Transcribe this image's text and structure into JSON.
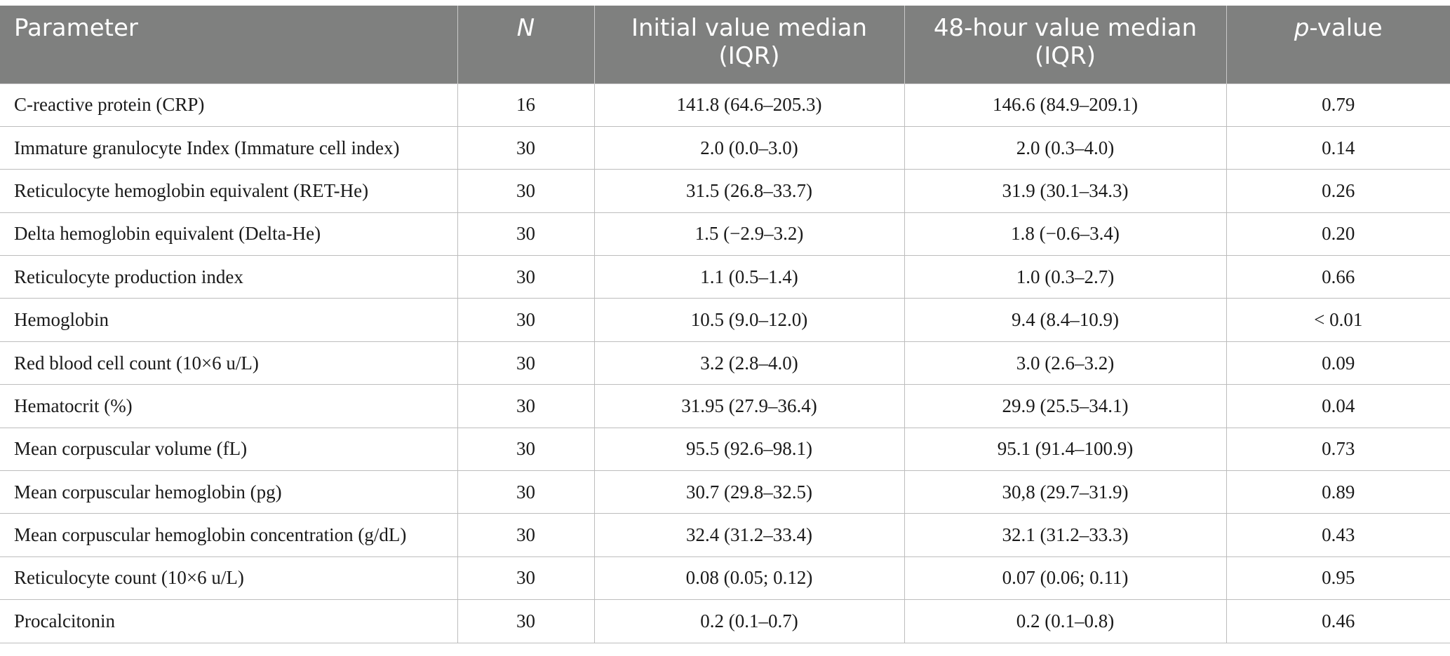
{
  "table": {
    "headers": {
      "parameter": "Parameter",
      "n": "N",
      "initial_line1": "Initial value median",
      "initial_line2": "(IQR)",
      "hour48_line1": "48-hour value median",
      "hour48_line2": "(IQR)",
      "p_italic": "p",
      "p_rest": "-value"
    },
    "rows": [
      {
        "parameter": "C-reactive protein (CRP)",
        "n": "16",
        "initial": "141.8 (64.6–205.3)",
        "hour48": "146.6 (84.9–209.1)",
        "p": "0.79"
      },
      {
        "parameter": "Immature granulocyte Index (Immature cell index)",
        "n": "30",
        "initial": "2.0 (0.0–3.0)",
        "hour48": "2.0 (0.3–4.0)",
        "p": "0.14"
      },
      {
        "parameter": "Reticulocyte hemoglobin equivalent (RET-He)",
        "n": "30",
        "initial": "31.5 (26.8–33.7)",
        "hour48": "31.9 (30.1–34.3)",
        "p": "0.26"
      },
      {
        "parameter": "Delta hemoglobin equivalent (Delta-He)",
        "n": "30",
        "initial": "1.5 (−2.9–3.2)",
        "hour48": "1.8 (−0.6–3.4)",
        "p": "0.20"
      },
      {
        "parameter": "Reticulocyte production index",
        "n": "30",
        "initial": "1.1 (0.5–1.4)",
        "hour48": "1.0 (0.3–2.7)",
        "p": "0.66"
      },
      {
        "parameter": "Hemoglobin",
        "n": "30",
        "initial": "10.5 (9.0–12.0)",
        "hour48": "9.4 (8.4–10.9)",
        "p": "< 0.01"
      },
      {
        "parameter": "Red blood cell count (10×6 u/L)",
        "n": "30",
        "initial": "3.2 (2.8–4.0)",
        "hour48": "3.0 (2.6–3.2)",
        "p": "0.09"
      },
      {
        "parameter": "Hematocrit (%)",
        "n": "30",
        "initial": "31.95 (27.9–36.4)",
        "hour48": "29.9 (25.5–34.1)",
        "p": "0.04"
      },
      {
        "parameter": "Mean corpuscular volume (fL)",
        "n": "30",
        "initial": "95.5 (92.6–98.1)",
        "hour48": "95.1 (91.4–100.9)",
        "p": "0.73"
      },
      {
        "parameter": "Mean corpuscular hemoglobin (pg)",
        "n": "30",
        "initial": "30.7 (29.8–32.5)",
        "hour48": "30,8 (29.7–31.9)",
        "p": "0.89"
      },
      {
        "parameter": "Mean corpuscular hemoglobin concentration (g/dL)",
        "n": "30",
        "initial": "32.4 (31.2–33.4)",
        "hour48": "32.1 (31.2–33.3)",
        "p": "0.43"
      },
      {
        "parameter": "Reticulocyte count (10×6 u/L)",
        "n": "30",
        "initial": "0.08 (0.05; 0.12)",
        "hour48": "0.07 (0.06; 0.11)",
        "p": "0.95"
      },
      {
        "parameter": "Procalcitonin",
        "n": "30",
        "initial": "0.2 (0.1–0.7)",
        "hour48": "0.2 (0.1–0.8)",
        "p": "0.46"
      }
    ]
  },
  "colors": {
    "header_background": "#7f807f",
    "header_text": "#ffffff",
    "grid_line": "#bdbdbd"
  }
}
